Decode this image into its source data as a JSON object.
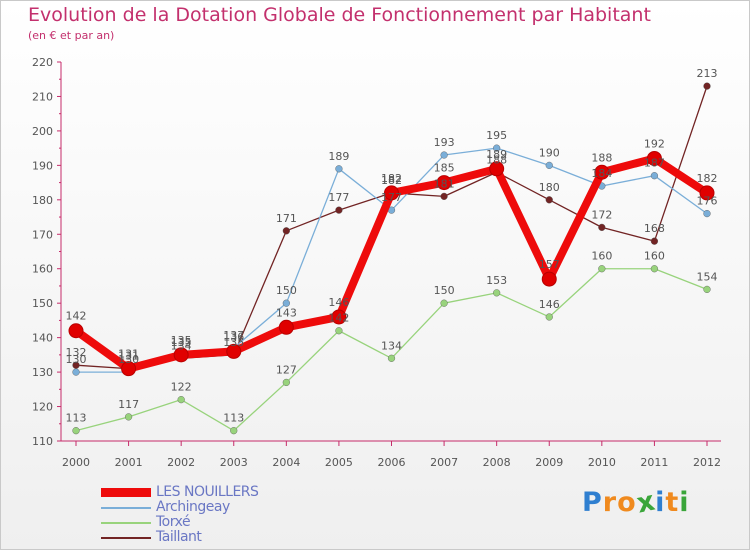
{
  "title": "Evolution de la Dotation Globale de Fonctionnement par Habitant",
  "subtitle": "(en € et par an)",
  "brand": {
    "letters": [
      "P",
      "r",
      "o",
      "x",
      "i",
      "t",
      "i"
    ],
    "colors": [
      "#2f7fd0",
      "#f08a1e",
      "#f08a1e",
      "#3aa53a",
      "#2f7fd0",
      "#f08a1e",
      "#3aa53a"
    ]
  },
  "chart_data": {
    "type": "line",
    "title": "Evolution de la Dotation Globale de Fonctionnement par Habitant",
    "subtitle": "(en € et par an)",
    "xlabel": "",
    "ylabel": "",
    "ylim": [
      110,
      220
    ],
    "yticks": [
      110,
      120,
      130,
      140,
      150,
      160,
      170,
      180,
      190,
      200,
      210,
      220
    ],
    "grid": false,
    "legend_position": "bottom-left",
    "categories": [
      "2000",
      "2001",
      "2002",
      "2003",
      "2004",
      "2005",
      "2006",
      "2007",
      "2008",
      "2009",
      "2010",
      "2011",
      "2012"
    ],
    "series": [
      {
        "name": "Taillant",
        "color": "#722424",
        "values": [
          132,
          131,
          134,
          135,
          171,
          177,
          182,
          181,
          188,
          180,
          172,
          168,
          213
        ],
        "labels": [
          "132",
          "131",
          "134",
          "135",
          "171",
          "177",
          "182",
          "181",
          "188",
          "180",
          "172",
          "168",
          "213"
        ]
      },
      {
        "name": "Archingeay",
        "color": "#7aaed8",
        "values": [
          130,
          130,
          135,
          137,
          150,
          189,
          177,
          193,
          195,
          190,
          184,
          187,
          176
        ],
        "labels": [
          "130",
          "130",
          "135",
          "137",
          "150",
          "189",
          "177",
          "193",
          "195",
          "190",
          "184",
          "187",
          "176"
        ]
      },
      {
        "name": "Torxé",
        "color": "#98d37c",
        "values": [
          113,
          117,
          122,
          113,
          127,
          142,
          134,
          150,
          153,
          146,
          160,
          160,
          154
        ],
        "labels": [
          "113",
          "117",
          "122",
          "113",
          "127",
          "142",
          "134",
          "150",
          "153",
          "146",
          "160",
          "160",
          "154"
        ]
      },
      {
        "name": "LES NOUILLERS",
        "color": "#ee0b0b",
        "values": [
          142,
          131,
          135,
          136,
          143,
          146,
          182,
          185,
          189,
          157,
          188,
          192,
          182
        ],
        "labels": [
          "142",
          "131",
          "135",
          "136",
          "143",
          "146",
          "182",
          "185",
          "189",
          "157",
          "188",
          "192",
          "182"
        ]
      }
    ]
  }
}
